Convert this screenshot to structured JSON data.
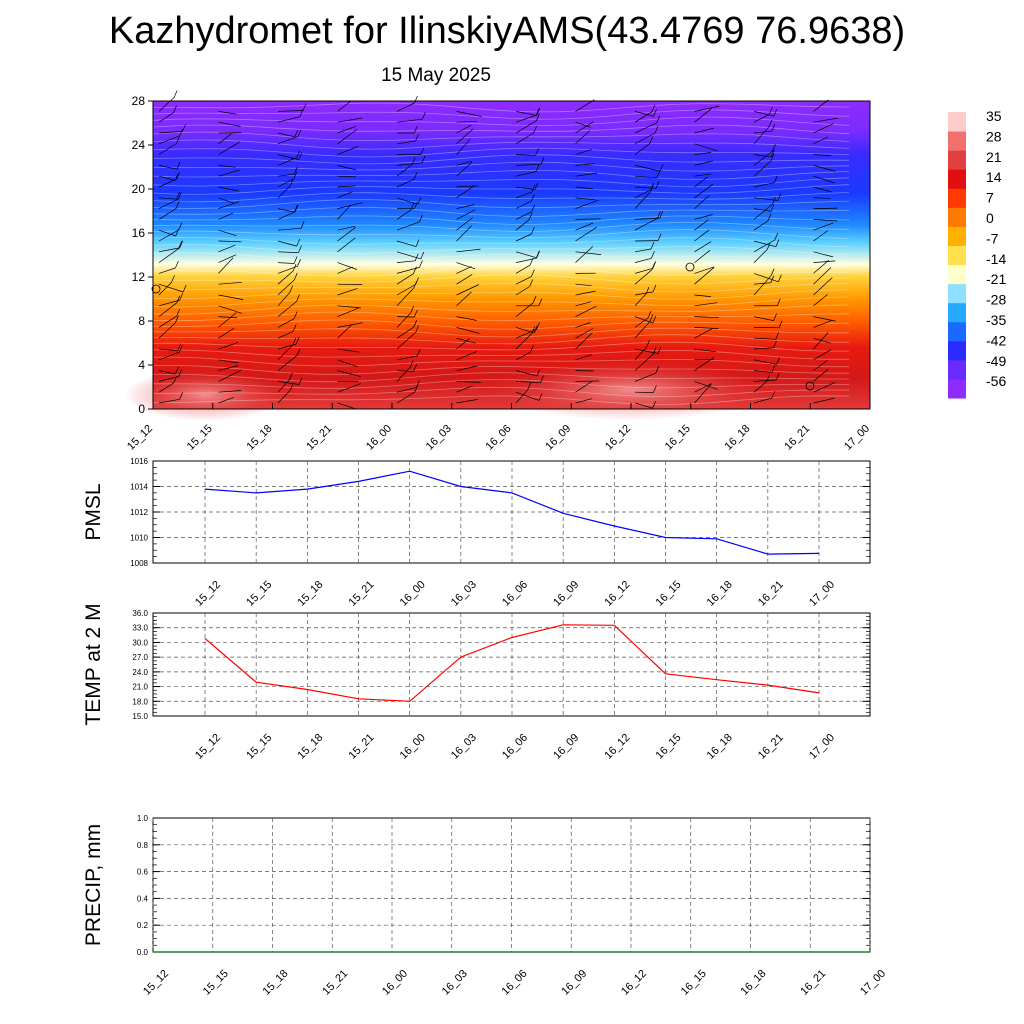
{
  "title": "Kazhydromet for IlinskiyAMS(43.4769 76.9638)",
  "subtitle": "15 May 2025",
  "time_labels": [
    "15_12",
    "15_15",
    "15_18",
    "15_21",
    "16_00",
    "16_03",
    "16_06",
    "16_09",
    "16_12",
    "16_15",
    "16_18",
    "16_21",
    "17_00"
  ],
  "colors": {
    "pmsl_line": "#0000ff",
    "temp_line": "#ff0000",
    "precip_line": "#006400"
  },
  "colorbar": {
    "labels": [
      "35",
      "28",
      "21",
      "14",
      "7",
      "0",
      "-7",
      "-14",
      "-21",
      "-28",
      "-35",
      "-42",
      "-49",
      "-56"
    ],
    "stops": [
      "#8e2bff",
      "#6a2bff",
      "#2b2bff",
      "#1a6aff",
      "#26aaff",
      "#8fe0ff",
      "#ffffcc",
      "#ffe04d",
      "#ffb000",
      "#ff7a00",
      "#ff3a00",
      "#e01010",
      "#e04040",
      "#f07070",
      "#ffcccc"
    ]
  },
  "chart_data": [
    {
      "type": "heatmap",
      "name": "vertical profile",
      "x": [
        "15_12",
        "15_15",
        "15_18",
        "15_21",
        "16_00",
        "16_03",
        "16_06",
        "16_09",
        "16_12",
        "16_15",
        "16_18",
        "16_21",
        "17_00"
      ],
      "yticks": [
        "0",
        "4",
        "8",
        "12",
        "16",
        "20",
        "24",
        "28"
      ],
      "ylim": [
        0,
        28
      ],
      "colorbar_range": [
        -56,
        35
      ]
    },
    {
      "type": "line",
      "ylabel": "PMSL",
      "x": [
        "15_12",
        "15_15",
        "15_18",
        "15_21",
        "16_00",
        "16_03",
        "16_06",
        "16_09",
        "16_12",
        "16_15",
        "16_18",
        "16_21",
        "17_00"
      ],
      "values": [
        1013.8,
        1013.5,
        1013.8,
        1014.4,
        1015.2,
        1014.0,
        1013.5,
        1011.9,
        1010.9,
        1010.0,
        1009.9,
        1008.7,
        1008.75
      ],
      "ylim": [
        1008,
        1016
      ],
      "yticks": [
        "1008",
        "1010",
        "1012",
        "1014",
        "1016"
      ]
    },
    {
      "type": "line",
      "ylabel": "TEMP at 2 M",
      "x": [
        "15_12",
        "15_15",
        "15_18",
        "15_21",
        "16_00",
        "16_03",
        "16_06",
        "16_09",
        "16_12",
        "16_15",
        "16_18",
        "16_21",
        "17_00"
      ],
      "values": [
        30.8,
        21.9,
        20.4,
        18.5,
        18.0,
        27.0,
        31.0,
        33.6,
        33.5,
        23.6,
        22.4,
        21.3,
        19.7
      ],
      "ylim": [
        15,
        36
      ],
      "yticks": [
        "15.0",
        "18.0",
        "21.0",
        "24.0",
        "27.0",
        "30.0",
        "33.0",
        "36.0"
      ]
    },
    {
      "type": "line",
      "ylabel": "PRECIP, mm",
      "x": [
        "15_12",
        "15_15",
        "15_18",
        "15_21",
        "16_00",
        "16_03",
        "16_06",
        "16_09",
        "16_12",
        "16_15",
        "16_18",
        "16_21",
        "17_00"
      ],
      "values": [
        0,
        0,
        0,
        0,
        0,
        0,
        0,
        0,
        0,
        0,
        0,
        0,
        0
      ],
      "ylim": [
        0,
        1
      ],
      "yticks": [
        "0.0",
        "0.2",
        "0.4",
        "0.6",
        "0.8",
        "1.0"
      ]
    }
  ]
}
